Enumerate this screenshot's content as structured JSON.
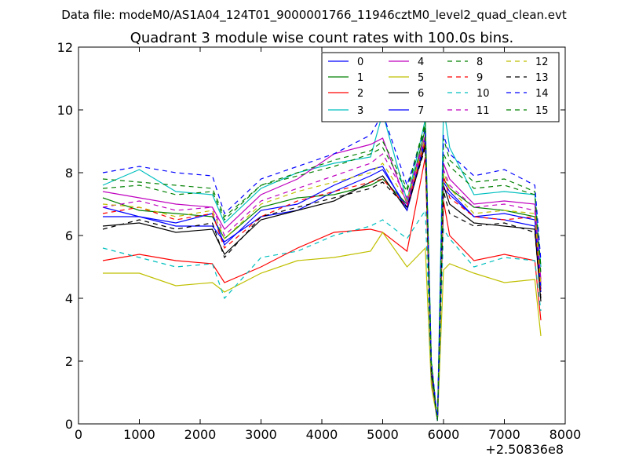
{
  "figure": {
    "suptitle": "Data file: modeM0/AS1A04_124T01_9000001766_11946cztM0_level2_quad_clean.evt"
  },
  "chart_data": {
    "type": "line",
    "title": "Quadrant 3 module wise count rates with 100.0s bins.",
    "xlabel": "",
    "ylabel": "",
    "x_offset_label": "+2.50836e8",
    "xlim": [
      0,
      8000
    ],
    "ylim": [
      0,
      12
    ],
    "xticks": [
      0,
      1000,
      2000,
      3000,
      4000,
      5000,
      6000,
      7000,
      8000
    ],
    "xtick_labels": [
      "0",
      "1000",
      "2000",
      "3000",
      "4000",
      "5000",
      "6000",
      "7000",
      "8000"
    ],
    "yticks": [
      0,
      2,
      4,
      6,
      8,
      10,
      12
    ],
    "ytick_labels": [
      "0",
      "2",
      "4",
      "6",
      "8",
      "10",
      "12"
    ],
    "legend_position": "top-right",
    "legend_columns": 4,
    "x": [
      400,
      1000,
      1600,
      2200,
      2400,
      3000,
      3600,
      4200,
      4800,
      5000,
      5400,
      5700,
      5800,
      5900,
      6000,
      6100,
      6500,
      7000,
      7500,
      7600
    ],
    "series": [
      {
        "name": "0",
        "color": "#0000ff",
        "dash": "solid",
        "values": [
          6.6,
          6.6,
          6.3,
          6.3,
          5.8,
          6.6,
          6.8,
          7.4,
          7.9,
          8.1,
          6.9,
          9.0,
          1.7,
          0.1,
          7.5,
          7.3,
          6.6,
          6.5,
          6.3,
          4.2
        ]
      },
      {
        "name": "1",
        "color": "#008000",
        "dash": "solid",
        "values": [
          7.2,
          6.8,
          6.7,
          6.6,
          5.9,
          6.9,
          7.2,
          7.3,
          7.6,
          7.8,
          7.0,
          9.4,
          1.9,
          0.1,
          7.8,
          7.5,
          6.9,
          6.8,
          6.6,
          4.4
        ]
      },
      {
        "name": "2",
        "color": "#ff0000",
        "dash": "solid",
        "values": [
          5.2,
          5.4,
          5.2,
          5.1,
          4.5,
          5.0,
          5.6,
          6.1,
          6.2,
          6.1,
          5.5,
          8.5,
          1.5,
          0.1,
          7.1,
          6.0,
          5.2,
          5.4,
          5.2,
          3.3
        ]
      },
      {
        "name": "3",
        "color": "#00bfbf",
        "dash": "solid",
        "values": [
          7.6,
          8.1,
          7.4,
          7.3,
          6.4,
          7.5,
          8.0,
          8.3,
          8.5,
          9.9,
          7.1,
          9.7,
          2.0,
          0.1,
          10.1,
          8.8,
          7.3,
          7.4,
          7.3,
          5.0
        ]
      },
      {
        "name": "4",
        "color": "#bf00bf",
        "dash": "solid",
        "values": [
          7.4,
          7.2,
          7.0,
          6.9,
          6.2,
          7.3,
          7.8,
          8.6,
          8.9,
          9.1,
          7.0,
          9.2,
          1.8,
          0.1,
          8.3,
          7.8,
          7.0,
          7.1,
          7.0,
          4.6
        ]
      },
      {
        "name": "5",
        "color": "#bfbf00",
        "dash": "solid",
        "values": [
          4.8,
          4.8,
          4.4,
          4.5,
          4.2,
          4.8,
          5.2,
          5.3,
          5.5,
          6.1,
          5.0,
          5.6,
          1.2,
          0.1,
          4.9,
          5.1,
          4.8,
          4.5,
          4.6,
          2.8
        ]
      },
      {
        "name": "6",
        "color": "#000000",
        "dash": "solid",
        "values": [
          6.3,
          6.4,
          6.1,
          6.2,
          5.4,
          6.5,
          6.8,
          7.1,
          7.7,
          7.9,
          6.8,
          8.9,
          1.6,
          0.1,
          7.6,
          7.0,
          6.4,
          6.3,
          6.2,
          3.9
        ]
      },
      {
        "name": "7",
        "color": "#0000ff",
        "dash": "solid",
        "values": [
          6.9,
          6.6,
          6.4,
          6.7,
          5.7,
          6.8,
          7.0,
          7.6,
          8.1,
          8.2,
          6.8,
          9.1,
          1.7,
          0.1,
          7.7,
          7.4,
          6.6,
          6.7,
          6.5,
          4.3
        ]
      },
      {
        "name": "8",
        "color": "#008000",
        "dash": "dashed",
        "values": [
          7.8,
          7.7,
          7.6,
          7.5,
          6.6,
          7.6,
          8.0,
          8.4,
          8.7,
          9.0,
          7.5,
          9.6,
          2.0,
          0.1,
          9.1,
          8.4,
          7.7,
          7.8,
          7.4,
          5.0
        ]
      },
      {
        "name": "9",
        "color": "#ff0000",
        "dash": "dashed",
        "values": [
          6.7,
          6.9,
          6.5,
          6.7,
          5.6,
          6.6,
          7.1,
          7.4,
          7.7,
          7.8,
          6.9,
          9.0,
          1.7,
          0.1,
          7.9,
          7.2,
          6.6,
          6.5,
          6.6,
          4.1
        ]
      },
      {
        "name": "10",
        "color": "#00bfbf",
        "dash": "dashed",
        "values": [
          5.6,
          5.3,
          5.0,
          5.1,
          4.0,
          5.3,
          5.5,
          6.0,
          6.3,
          6.5,
          5.9,
          6.8,
          1.5,
          0.1,
          6.2,
          5.9,
          5.0,
          5.3,
          5.2,
          3.6
        ]
      },
      {
        "name": "11",
        "color": "#bf00bf",
        "dash": "dashed",
        "values": [
          6.9,
          7.1,
          6.8,
          6.9,
          6.0,
          7.1,
          7.5,
          7.9,
          8.3,
          8.6,
          7.2,
          9.2,
          1.8,
          0.1,
          8.1,
          7.6,
          6.9,
          7.0,
          6.8,
          4.5
        ]
      },
      {
        "name": "12",
        "color": "#bfbf00",
        "dash": "dashed",
        "values": [
          7.0,
          6.9,
          6.6,
          6.8,
          5.9,
          7.0,
          7.4,
          7.7,
          8.0,
          8.3,
          7.1,
          9.1,
          1.8,
          0.1,
          8.0,
          7.5,
          6.7,
          6.8,
          6.7,
          4.4
        ]
      },
      {
        "name": "13",
        "color": "#000000",
        "dash": "dashed",
        "values": [
          6.2,
          6.5,
          6.2,
          6.4,
          5.3,
          6.6,
          6.9,
          7.2,
          7.5,
          7.7,
          6.9,
          8.8,
          1.6,
          0.1,
          7.4,
          6.7,
          6.3,
          6.4,
          6.1,
          4.0
        ]
      },
      {
        "name": "14",
        "color": "#0000ff",
        "dash": "dashed",
        "values": [
          8.0,
          8.2,
          8.0,
          7.9,
          6.7,
          7.8,
          8.2,
          8.6,
          9.2,
          9.9,
          7.6,
          9.4,
          2.0,
          0.1,
          9.2,
          8.6,
          7.9,
          8.1,
          7.6,
          5.2
        ]
      },
      {
        "name": "15",
        "color": "#008000",
        "dash": "dashed",
        "values": [
          7.5,
          7.6,
          7.3,
          7.4,
          6.5,
          7.6,
          7.9,
          8.2,
          8.6,
          8.8,
          7.4,
          9.5,
          1.9,
          0.1,
          8.6,
          8.2,
          7.5,
          7.6,
          7.3,
          4.8
        ]
      }
    ]
  }
}
